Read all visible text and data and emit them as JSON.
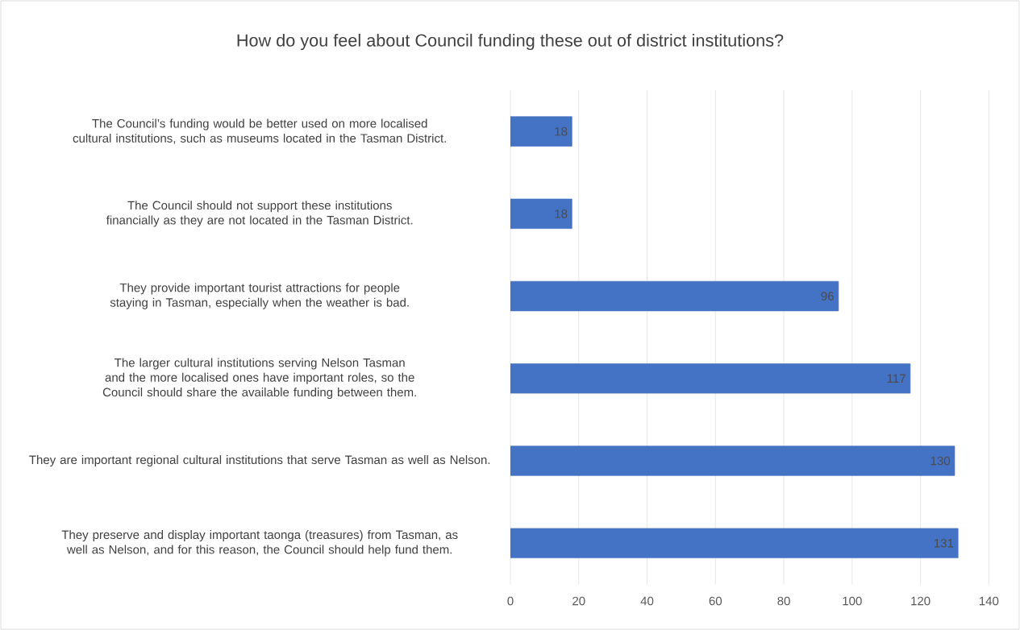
{
  "chart_data": {
    "type": "bar",
    "orientation": "horizontal",
    "title": "How do you feel about Council funding these out of district institutions?",
    "categories": [
      "The Council’s funding would be better used on more localised cultural institutions, such as museums located in the Tasman District.",
      "The Council should not support these institutions financially as they are not located in the Tasman District.",
      "They provide important tourist attractions for people staying in Tasman, especially when the weather is bad.",
      "The larger cultural institutions serving Nelson Tasman and the more localised ones have important roles, so the Council should share the available funding between them.",
      "They are important regional cultural institutions that serve Tasman as well as Nelson.",
      "They preserve and display important taonga (treasures) from Tasman, as well as Nelson, and for this reason, the Council should help fund them."
    ],
    "values": [
      18,
      18,
      96,
      117,
      130,
      131
    ],
    "color": "#4472c4",
    "xlim": [
      0,
      140
    ],
    "xticks": [
      0,
      20,
      40,
      60,
      80,
      100,
      120,
      140
    ],
    "grid": "x",
    "data_labels": true
  }
}
